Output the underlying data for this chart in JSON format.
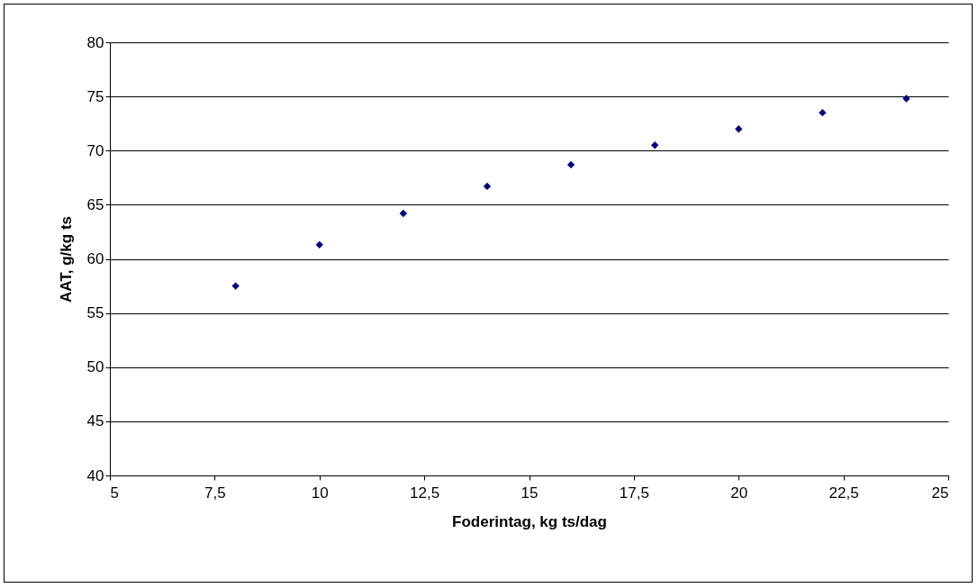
{
  "chart_data": {
    "type": "scatter",
    "xlabel": "Foderintag, kg ts/dag",
    "ylabel": "AAT, g/kg ts",
    "x": [
      8,
      10,
      12,
      14,
      16,
      18,
      20,
      22,
      24
    ],
    "series": [
      {
        "color": "#000080",
        "values": [
          57.5,
          61.3,
          64.2,
          66.7,
          68.7,
          70.5,
          72.0,
          73.5,
          74.8
        ]
      }
    ],
    "xlim": [
      5,
      25
    ],
    "xticks": [
      5,
      {
        "value": 7.5,
        "label": "7,5"
      },
      10,
      {
        "value": 12.5,
        "label": "12,5"
      },
      15,
      {
        "value": 17.5,
        "label": "17,5"
      },
      20,
      {
        "value": 22.5,
        "label": "22,5"
      },
      25
    ],
    "ylim": [
      40,
      80
    ],
    "yticks": [
      40,
      45,
      50,
      55,
      60,
      65,
      70,
      75,
      80
    ],
    "grid": "y",
    "marker": "diamond"
  }
}
